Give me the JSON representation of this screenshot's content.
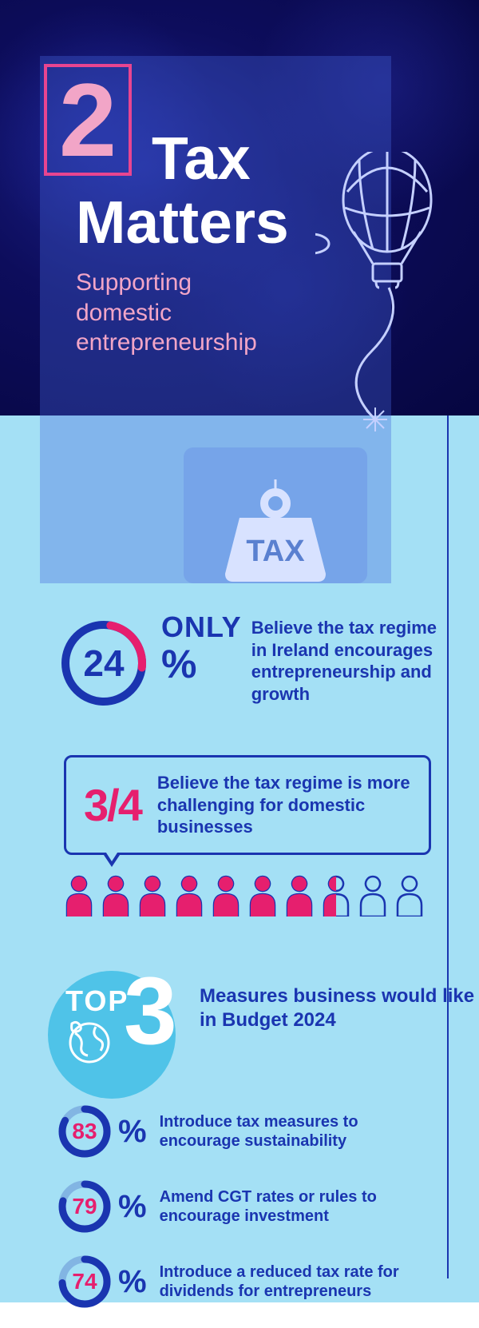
{
  "header": {
    "number": "2",
    "title_line1": "Tax",
    "title_line2": "Matters",
    "subtitle": "Supporting\ndomestic\nentrepreneurship"
  },
  "colors": {
    "dark_blue": "#1a35b0",
    "pink": "#e61f6e",
    "light_pink": "#f2a5c7",
    "cyan_bg": "#a4e0f5",
    "circle_bg": "#4fc3e8",
    "white": "#ffffff"
  },
  "tax_icon": {
    "label": "TAX"
  },
  "stat1": {
    "value": 24,
    "prefix": "ONLY",
    "suffix": "%",
    "text": "Believe the tax regime in Ireland encourages entrepreneurship and growth",
    "donut": {
      "percent": 24,
      "fg": "#e61f6e",
      "bg": "#1a35b0",
      "stroke_width": 10,
      "radius": 48
    }
  },
  "stat2": {
    "fraction": "3/4",
    "text": "Believe the tax regime is more challenging for domestic businesses",
    "people": {
      "total": 10,
      "filled": 7.5,
      "fill_color": "#e61f6e",
      "outline_color": "#1a35b0"
    }
  },
  "top3": {
    "label": "TOP",
    "number": "3",
    "text": "Measures business would like in Budget 2024"
  },
  "measures": [
    {
      "value": 83,
      "text": "Introduce tax measures to encourage sustainability"
    },
    {
      "value": 79,
      "text": "Amend CGT rates or rules to encourage investment"
    },
    {
      "value": 74,
      "text": "Introduce a reduced tax rate for dividends for entrepreneurs"
    }
  ],
  "measure_donut": {
    "fg": "#1a35b0",
    "bg": "rgba(26,53,176,0.25)",
    "stroke_width": 9,
    "radius": 28
  }
}
